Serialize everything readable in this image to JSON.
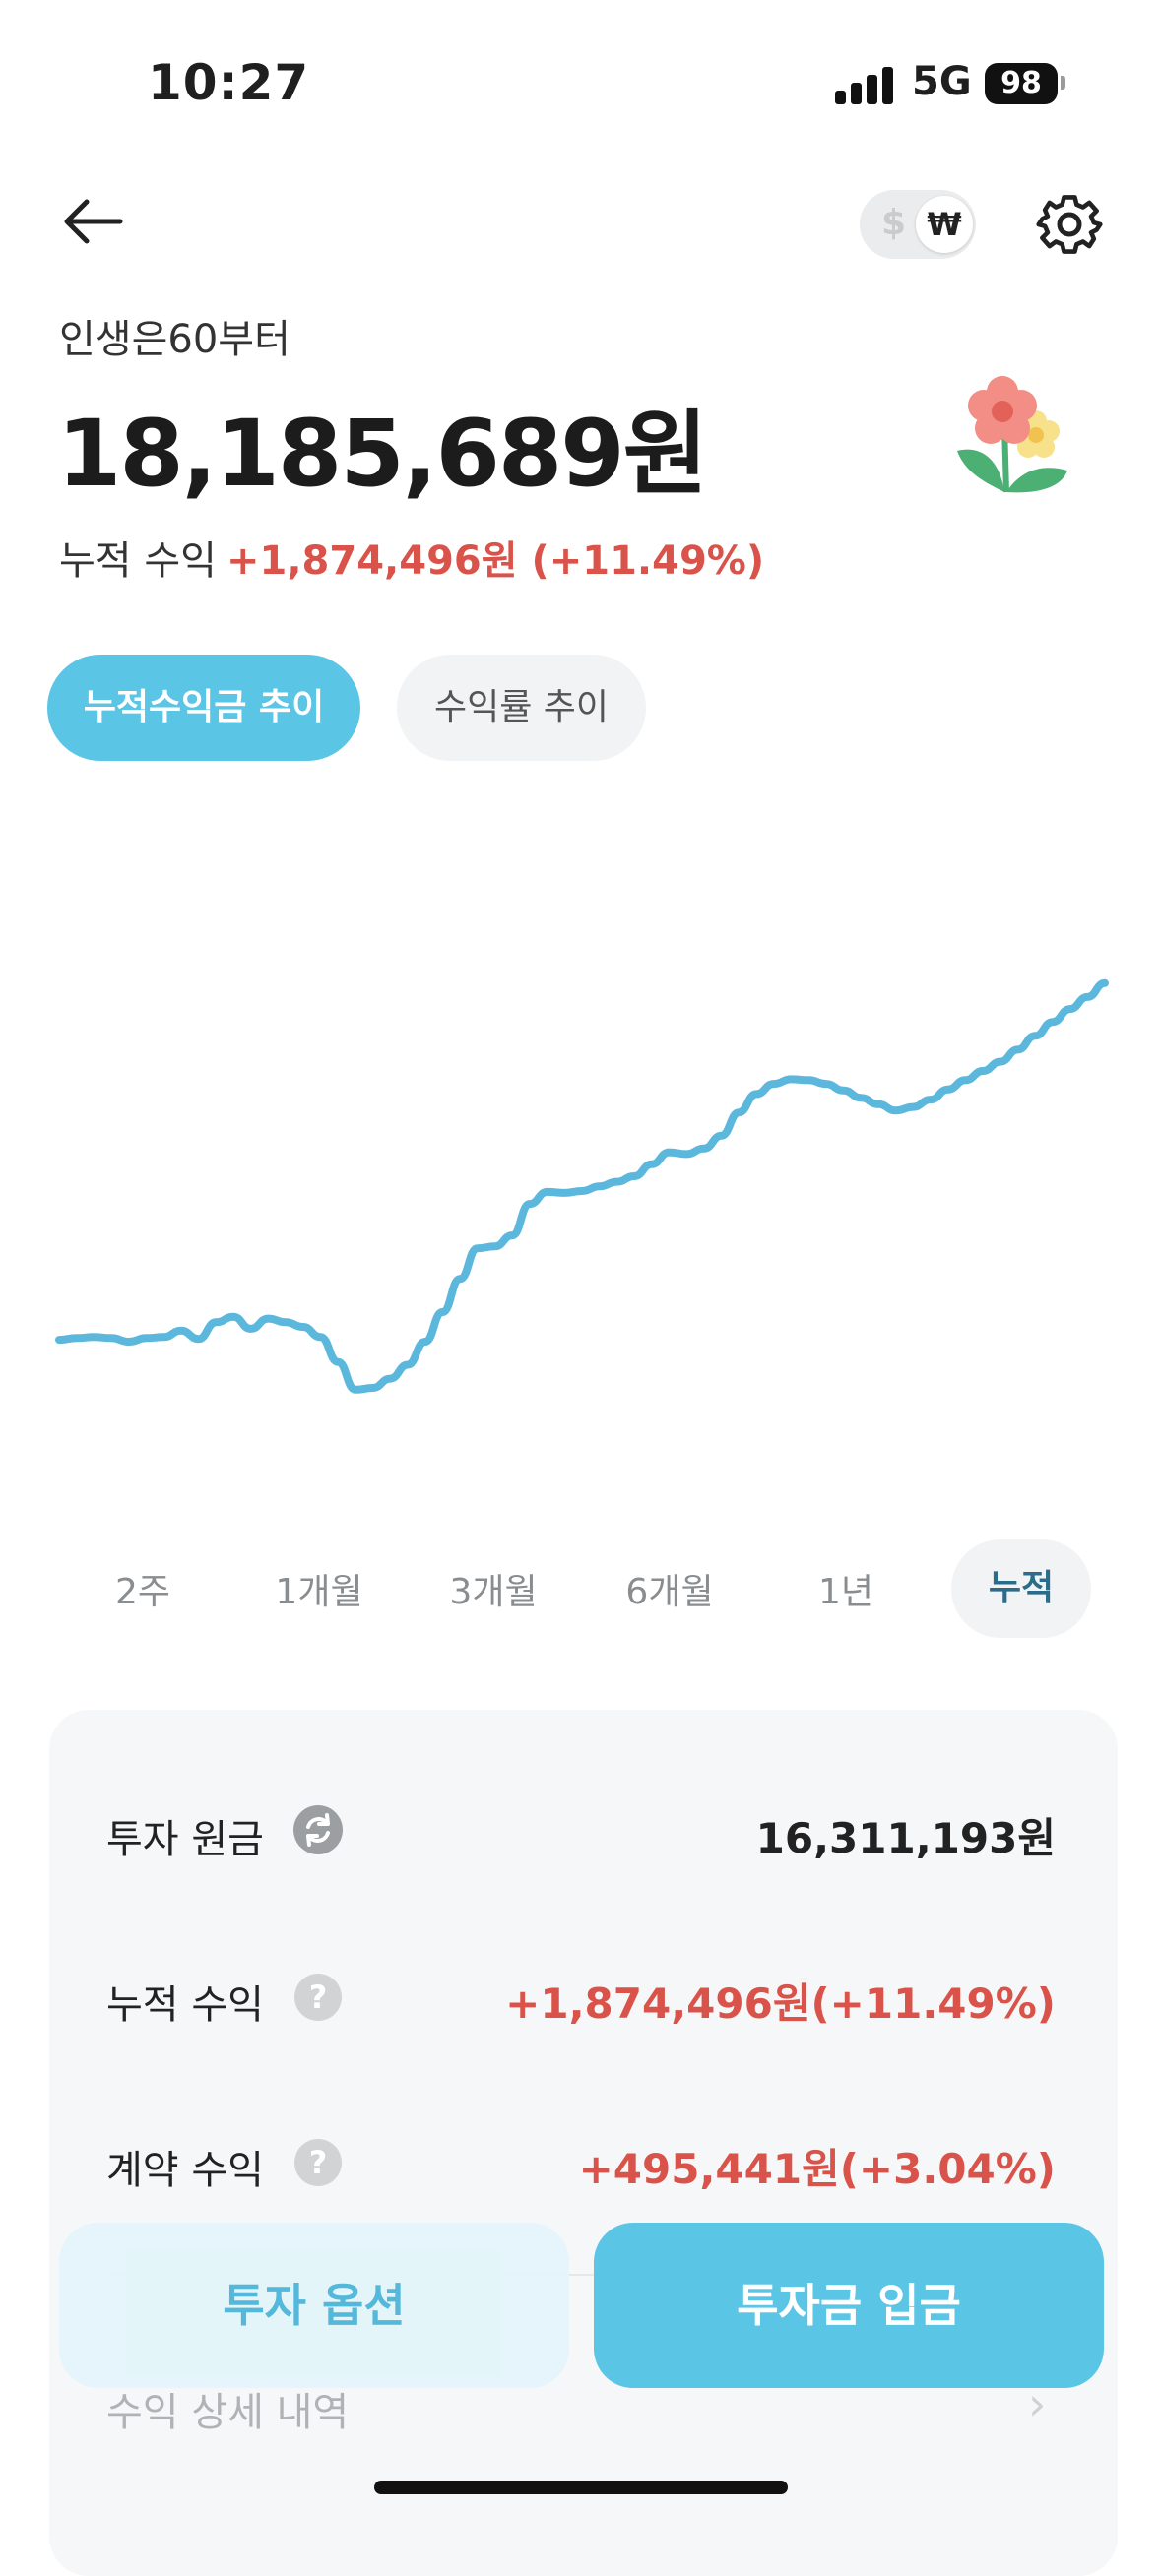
{
  "status_bar": {
    "time": "10:27",
    "network": "5G",
    "battery": "98"
  },
  "header": {
    "back_icon": "arrow-left-icon",
    "currency_toggle": {
      "left": "$",
      "right": "₩"
    },
    "settings_icon": "gear-icon"
  },
  "account": {
    "name": "인생은60부터",
    "balance": "18,185,689원",
    "profit_label": "누적 수익",
    "profit_value": "+1,874,496원 (+11.49%)",
    "emblem_icon": "flower-icon"
  },
  "chart_tabs": [
    {
      "label": "누적수익금 추이",
      "active": true
    },
    {
      "label": "수익률 추이",
      "active": false
    }
  ],
  "chart_data": {
    "type": "line",
    "color": "#5bb8dc",
    "x": [
      0,
      1,
      2,
      3,
      4,
      5,
      6,
      7,
      8,
      9,
      10,
      11,
      12,
      13,
      14,
      15,
      16,
      17,
      18,
      19,
      20,
      21,
      22,
      23,
      24,
      25,
      26,
      27,
      28,
      29,
      30,
      31,
      32,
      33,
      34,
      35,
      36,
      37,
      38,
      39,
      40,
      41,
      42,
      43,
      44,
      45,
      46,
      47,
      48,
      49,
      50,
      51,
      52,
      53,
      54,
      55,
      56,
      57,
      58,
      59,
      60
    ],
    "values": [
      0.54,
      0.56,
      0.57,
      0.56,
      0.52,
      0.56,
      0.57,
      0.64,
      0.55,
      0.73,
      0.79,
      0.66,
      0.77,
      0.73,
      0.68,
      0.57,
      0.3,
      0.0,
      0.02,
      0.12,
      0.27,
      0.52,
      0.84,
      1.2,
      1.53,
      1.55,
      1.67,
      2.01,
      2.14,
      2.13,
      2.15,
      2.2,
      2.25,
      2.31,
      2.44,
      2.57,
      2.55,
      2.61,
      2.75,
      3.0,
      3.2,
      3.31,
      3.36,
      3.35,
      3.31,
      3.24,
      3.16,
      3.09,
      3.02,
      3.06,
      3.14,
      3.25,
      3.35,
      3.45,
      3.55,
      3.68,
      3.83,
      3.98,
      4.12,
      4.25,
      4.4
    ],
    "ylim": [
      -0.3,
      4.6
    ],
    "grid": false,
    "legend": "none"
  },
  "periods": [
    {
      "label": "2주",
      "active": false
    },
    {
      "label": "1개월",
      "active": false
    },
    {
      "label": "3개월",
      "active": false
    },
    {
      "label": "6개월",
      "active": false
    },
    {
      "label": "1년",
      "active": false
    },
    {
      "label": "누적",
      "active": true
    }
  ],
  "summary": {
    "principal_label": "투자 원금",
    "principal_value": "16,311,193원",
    "cumulative_label": "누적 수익",
    "cumulative_value": "+1,874,496원(+11.49%)",
    "contract_label": "계약 수익",
    "contract_value": "+495,441원(+3.04%)",
    "detail_label": "수익 상세 내역",
    "help_glyph": "?",
    "chevron": "›",
    "value_color": "#d9534a"
  },
  "actions": {
    "options_label": "투자 옵션",
    "deposit_label": "투자금 입금"
  }
}
